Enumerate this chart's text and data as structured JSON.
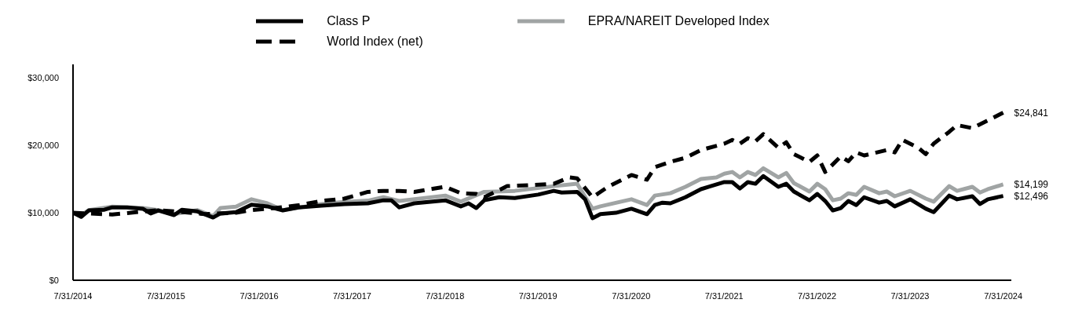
{
  "chart_data": {
    "type": "line",
    "xlim": [
      "2014-07-31",
      "2024-09-01"
    ],
    "xticks": [
      {
        "value": "2014-07-31",
        "label": "7/31/2014"
      },
      {
        "value": "2015-07-31",
        "label": "7/31/2015"
      },
      {
        "value": "2016-07-31",
        "label": "7/31/2016"
      },
      {
        "value": "2017-07-31",
        "label": "7/31/2017"
      },
      {
        "value": "2018-07-31",
        "label": "7/31/2018"
      },
      {
        "value": "2019-07-31",
        "label": "7/31/2019"
      },
      {
        "value": "2020-07-31",
        "label": "7/31/2020"
      },
      {
        "value": "2021-07-31",
        "label": "7/31/2021"
      },
      {
        "value": "2022-07-31",
        "label": "7/31/2022"
      },
      {
        "value": "2023-07-31",
        "label": "7/31/2023"
      },
      {
        "value": "2024-07-31",
        "label": "7/31/2024"
      }
    ],
    "ylim": [
      0,
      32000
    ],
    "yticks": [
      {
        "value": 0,
        "label": "$0"
      },
      {
        "value": 10000,
        "label": "$10,000"
      },
      {
        "value": 20000,
        "label": "$20,000"
      },
      {
        "value": 30000,
        "label": "$30,000"
      }
    ],
    "grid": false,
    "legend": "top",
    "marker": "none",
    "series": [
      {
        "name": "Class P",
        "color": "#000000",
        "line_style": "solid",
        "x": [
          "2014-07-31",
          "2014-09",
          "2014-10",
          "2014-12",
          "2015-01",
          "2015-03",
          "2015-05",
          "2015-06",
          "2015-07",
          "2015-09",
          "2015-10",
          "2015-12",
          "2016-02",
          "2016-03",
          "2016-05",
          "2016-07",
          "2016-09",
          "2016-11",
          "2017-01",
          "2017-04",
          "2017-07",
          "2017-10",
          "2017-12",
          "2018-01",
          "2018-02",
          "2018-04",
          "2018-08",
          "2018-10",
          "2018-11",
          "2018-12",
          "2019-01",
          "2019-03",
          "2019-05",
          "2019-08",
          "2019-10",
          "2019-11",
          "2020-01",
          "2020-02",
          "2020-03",
          "2020-04",
          "2020-06",
          "2020-08",
          "2020-10",
          "2020-11",
          "2020-12",
          "2021-01",
          "2021-03",
          "2021-05",
          "2021-06",
          "2021-08",
          "2021-09",
          "2021-10",
          "2021-11",
          "2021-12",
          "2022-01",
          "2022-03",
          "2022-04",
          "2022-05",
          "2022-07",
          "2022-08",
          "2022-09",
          "2022-10",
          "2022-11",
          "2022-12",
          "2023-01",
          "2023-02",
          "2023-04",
          "2023-05",
          "2023-06",
          "2023-08",
          "2023-10",
          "2023-11",
          "2024-01",
          "2024-02",
          "2024-04",
          "2024-05",
          "2024-06",
          "2024-07-31"
        ],
        "values": [
          10000,
          9400,
          10350,
          10450,
          10800,
          10800,
          10600,
          9900,
          10350,
          9650,
          10450,
          10200,
          9300,
          9900,
          10100,
          11200,
          10950,
          10350,
          10800,
          11050,
          11300,
          11400,
          11850,
          11850,
          10800,
          11400,
          11850,
          10950,
          11400,
          10700,
          11850,
          12300,
          12200,
          12700,
          13250,
          13000,
          13100,
          12000,
          9200,
          9800,
          10000,
          10600,
          9800,
          11150,
          11500,
          11400,
          12300,
          13500,
          13850,
          14550,
          14550,
          13600,
          14550,
          14300,
          15450,
          13850,
          14300,
          13150,
          11850,
          12800,
          11750,
          10350,
          10700,
          11750,
          11150,
          12300,
          11500,
          11750,
          10950,
          12000,
          10600,
          10100,
          12550,
          12000,
          12450,
          11300,
          12000,
          12496
        ]
      },
      {
        "name": "World Index (net)",
        "color": "#000000",
        "line_style": "dashed",
        "x": [
          "2014-07-31",
          "2015-01",
          "2015-07",
          "2016-01",
          "2016-05",
          "2016-07",
          "2016-09",
          "2017-01",
          "2017-04",
          "2017-07",
          "2017-10",
          "2017-12",
          "2018-02",
          "2018-04",
          "2018-08",
          "2018-10",
          "2018-12",
          "2019-01",
          "2019-04",
          "2019-06",
          "2019-10",
          "2019-12",
          "2020-01",
          "2020-03",
          "2020-05",
          "2020-08",
          "2020-10",
          "2020-11",
          "2021-01",
          "2021-03",
          "2021-05",
          "2021-08",
          "2021-09",
          "2021-10",
          "2021-11",
          "2021-12",
          "2022-01",
          "2022-03",
          "2022-04",
          "2022-05",
          "2022-07",
          "2022-08",
          "2022-09",
          "2022-11",
          "2022-12",
          "2023-01",
          "2023-02",
          "2023-05",
          "2023-06",
          "2023-07",
          "2023-09",
          "2023-10",
          "2023-11",
          "2024-01",
          "2024-02",
          "2024-04",
          "2024-07-31"
        ],
        "values": [
          10000,
          9750,
          10400,
          9800,
          10000,
          10400,
          10600,
          11100,
          11750,
          12100,
          13100,
          13250,
          13250,
          13100,
          13850,
          12900,
          12800,
          12300,
          13950,
          14050,
          14300,
          15250,
          15100,
          12300,
          13850,
          15600,
          14900,
          16750,
          17550,
          18150,
          19300,
          20250,
          20800,
          20250,
          21050,
          20600,
          21650,
          19650,
          20450,
          18700,
          17550,
          18500,
          16050,
          18350,
          17650,
          18950,
          18500,
          19300,
          18950,
          20800,
          19650,
          18700,
          20250,
          22000,
          23000,
          22550,
          24841
        ]
      },
      {
        "name": "EPRA/NAREIT Developed Index",
        "color": "#a0a4a4",
        "line_style": "solid",
        "x": [
          "2014-07-31",
          "2014-09",
          "2014-10",
          "2015-01",
          "2015-05",
          "2015-07",
          "2015-09",
          "2015-12",
          "2016-02",
          "2016-03",
          "2016-05",
          "2016-07",
          "2016-09",
          "2016-11",
          "2017-04",
          "2017-07",
          "2017-10",
          "2017-12",
          "2018-02",
          "2018-08",
          "2018-10",
          "2019-01",
          "2019-05",
          "2019-10",
          "2020-01",
          "2020-03",
          "2020-04",
          "2020-08",
          "2020-10",
          "2020-11",
          "2021-01",
          "2021-03",
          "2021-05",
          "2021-07",
          "2021-08",
          "2021-09",
          "2021-10",
          "2021-11",
          "2021-12",
          "2022-01",
          "2022-03",
          "2022-04",
          "2022-05",
          "2022-07",
          "2022-08",
          "2022-09",
          "2022-10",
          "2022-11",
          "2022-12",
          "2023-01",
          "2023-02",
          "2023-04",
          "2023-05",
          "2023-06",
          "2023-08",
          "2023-10",
          "2023-11",
          "2024-01",
          "2024-02",
          "2024-04",
          "2024-05",
          "2024-06",
          "2024-07-31"
        ],
        "values": [
          10000,
          9600,
          10400,
          10900,
          10700,
          10400,
          9800,
          10400,
          9500,
          10700,
          10900,
          12000,
          11400,
          10400,
          11300,
          11600,
          11800,
          12300,
          11750,
          12550,
          11650,
          13100,
          13250,
          13950,
          14300,
          10600,
          10950,
          12000,
          11150,
          12550,
          12900,
          13850,
          15000,
          15250,
          15800,
          16050,
          15250,
          16050,
          15600,
          16600,
          15250,
          15900,
          14400,
          13150,
          14300,
          13500,
          11850,
          12100,
          12900,
          12650,
          13850,
          12900,
          13150,
          12450,
          13250,
          12100,
          11650,
          13950,
          13250,
          13850,
          13000,
          13500,
          14199
        ]
      }
    ],
    "annotations": [
      {
        "text": "$24,841",
        "x": "2024-07-31",
        "y": 24841
      },
      {
        "text": "$14,199",
        "x": "2024-07-31",
        "y": 14199
      },
      {
        "text": "$12,496",
        "x": "2024-07-31",
        "y": 12496
      }
    ]
  }
}
